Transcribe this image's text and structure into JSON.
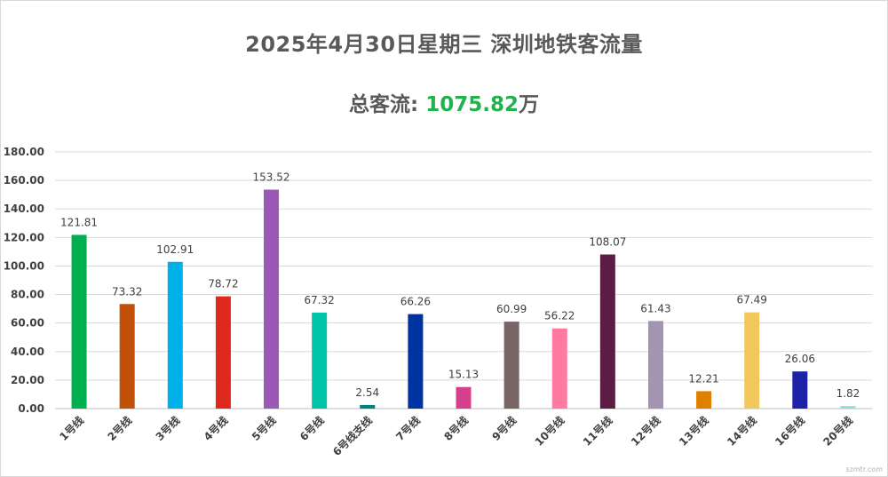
{
  "title": "2025年4月30日星期三  深圳地铁客流量",
  "subtitle": {
    "label": "总客流: ",
    "value": "1075.82",
    "unit": "万"
  },
  "colors": {
    "title": "#595959",
    "total_value": "#22b14c",
    "grid": "#d9d9d9",
    "axis_text": "#404040"
  },
  "chart_data": {
    "type": "bar",
    "title": "",
    "xlabel": "",
    "ylabel": "",
    "ylim": [
      0,
      180
    ],
    "yticks": [
      "0.00",
      "20.00",
      "40.00",
      "60.00",
      "80.00",
      "100.00",
      "120.00",
      "140.00",
      "160.00",
      "180.00"
    ],
    "grid": true,
    "categories": [
      "1号线",
      "2号线",
      "3号线",
      "4号线",
      "5号线",
      "6号线",
      "6号线支线",
      "7号线",
      "8号线",
      "9号线",
      "10号线",
      "11号线",
      "12号线",
      "13号线",
      "14号线",
      "16号线",
      "20号线"
    ],
    "values": [
      121.81,
      73.32,
      102.91,
      78.72,
      153.52,
      67.32,
      2.54,
      66.26,
      15.13,
      60.99,
      56.22,
      108.07,
      61.43,
      12.21,
      67.49,
      26.06,
      1.82
    ],
    "value_labels": [
      "121.81",
      "73.32",
      "102.91",
      "78.72",
      "153.52",
      "67.32",
      "2.54",
      "66.26",
      "15.13",
      "60.99",
      "56.22",
      "108.07",
      "61.43",
      "12.21",
      "67.49",
      "26.06",
      "1.82"
    ],
    "bar_colors": [
      "#00b050",
      "#c0500a",
      "#00b0e8",
      "#e0281e",
      "#9b59b6",
      "#00c4a7",
      "#00837a",
      "#0033a0",
      "#d63f8c",
      "#7a6565",
      "#ff7aa0",
      "#5c1d45",
      "#a394b0",
      "#e08000",
      "#f2c85c",
      "#1e22a8",
      "#8de1e3"
    ]
  },
  "watermark": "szmtr.com"
}
